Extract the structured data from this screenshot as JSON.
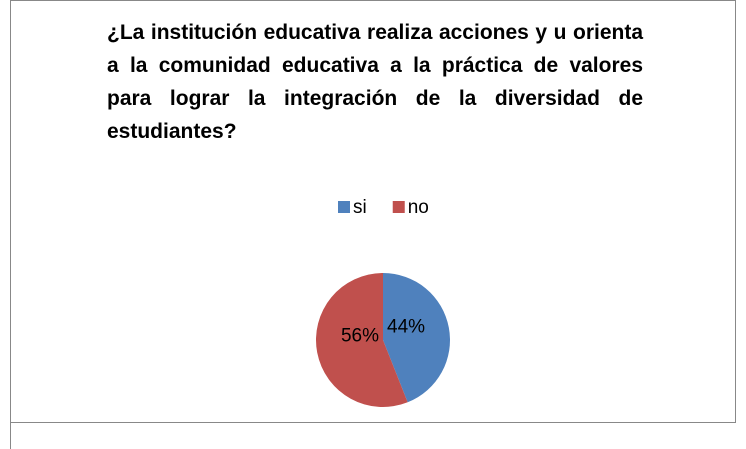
{
  "chart_data": {
    "type": "pie",
    "title": "¿La institución educativa realiza acciones y u orienta a la comunidad educativa a la práctica de valores para lograr la integración de la diversidad de estudiantes?",
    "categories": [
      "si",
      "no"
    ],
    "values": [
      44,
      56
    ],
    "value_labels": [
      "44%",
      "56%"
    ],
    "colors": [
      "#4f81bd",
      "#c0504d"
    ],
    "legend": "top"
  }
}
